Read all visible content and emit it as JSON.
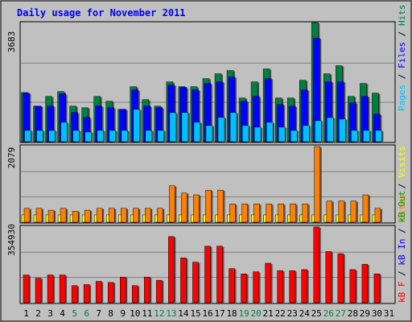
{
  "chart_data": [
    {
      "type": "bar",
      "title": "Daily usage for November 2011",
      "panel": "hits-files-pages",
      "ymax_label": "3683",
      "ylim": [
        0,
        3683
      ],
      "legend": [
        "Pages",
        "Files",
        "Hits"
      ],
      "colors": {
        "hits": "#008040",
        "files": "#0000ff",
        "pages": "#00c0ff"
      },
      "categories": [
        "1",
        "2",
        "3",
        "4",
        "5",
        "6",
        "7",
        "8",
        "9",
        "10",
        "11",
        "12",
        "13",
        "14",
        "15",
        "16",
        "17",
        "18",
        "19",
        "20",
        "21",
        "22",
        "23",
        "24",
        "25",
        "26",
        "27",
        "28",
        "29",
        "30",
        "31"
      ],
      "series": [
        {
          "name": "Hits",
          "values": [
            1520,
            1100,
            1400,
            1550,
            1100,
            1050,
            1400,
            1250,
            1000,
            1700,
            1300,
            1100,
            1850,
            1700,
            1700,
            1950,
            2100,
            2200,
            1350,
            1850,
            2250,
            1350,
            1350,
            1900,
            3683,
            2100,
            2350,
            1400,
            1800,
            1500,
            0
          ]
        },
        {
          "name": "Files",
          "values": [
            1500,
            1100,
            1100,
            1480,
            900,
            750,
            1100,
            1050,
            1000,
            1600,
            1100,
            1050,
            1750,
            1680,
            1600,
            1800,
            1850,
            2000,
            1250,
            1400,
            1950,
            1150,
            1100,
            1600,
            3200,
            1850,
            1850,
            1200,
            1400,
            850,
            0
          ]
        },
        {
          "name": "Pages",
          "values": [
            350,
            350,
            350,
            600,
            350,
            300,
            350,
            350,
            350,
            1000,
            350,
            350,
            900,
            900,
            600,
            500,
            750,
            900,
            500,
            450,
            600,
            450,
            350,
            500,
            650,
            750,
            700,
            350,
            350,
            350,
            0
          ]
        }
      ]
    },
    {
      "type": "bar",
      "panel": "sites-visits",
      "ymax_label": "2079",
      "ylim": [
        0,
        2079
      ],
      "legend": [
        "Visits",
        "Sites"
      ],
      "colors": {
        "visits": "#ffff00",
        "sites": "#ff8000"
      },
      "categories": [
        "1",
        "2",
        "3",
        "4",
        "5",
        "6",
        "7",
        "8",
        "9",
        "10",
        "11",
        "12",
        "13",
        "14",
        "15",
        "16",
        "17",
        "18",
        "19",
        "20",
        "21",
        "22",
        "23",
        "24",
        "25",
        "26",
        "27",
        "28",
        "29",
        "30",
        "31"
      ],
      "series": [
        {
          "name": "Visits",
          "values": [
            200,
            200,
            200,
            200,
            200,
            200,
            200,
            200,
            200,
            200,
            200,
            200,
            200,
            200,
            200,
            200,
            200,
            200,
            200,
            200,
            200,
            200,
            200,
            200,
            200,
            200,
            200,
            200,
            200,
            200,
            0
          ]
        },
        {
          "name": "Sites",
          "values": [
            380,
            380,
            330,
            380,
            300,
            330,
            380,
            380,
            380,
            380,
            380,
            380,
            1000,
            800,
            750,
            880,
            880,
            500,
            500,
            500,
            500,
            500,
            500,
            500,
            2079,
            580,
            580,
            580,
            750,
            380,
            0
          ]
        }
      ]
    },
    {
      "type": "bar",
      "panel": "kbf-kbin-kbout",
      "ymax_label": "354930",
      "ylim": [
        0,
        354930
      ],
      "legend": [
        "kB F",
        "kB In",
        "kB Out"
      ],
      "colors": {
        "kbf": "#ff0000",
        "kbin": "#0000ff",
        "kbout": "#00a000"
      },
      "categories": [
        "1",
        "2",
        "3",
        "4",
        "5",
        "6",
        "7",
        "8",
        "9",
        "10",
        "11",
        "12",
        "13",
        "14",
        "15",
        "16",
        "17",
        "18",
        "19",
        "20",
        "21",
        "22",
        "23",
        "24",
        "25",
        "26",
        "27",
        "28",
        "29",
        "30",
        "31"
      ],
      "series": [
        {
          "name": "kB F",
          "values": [
            130000,
            115000,
            130000,
            130000,
            80000,
            85000,
            100000,
            95000,
            120000,
            80000,
            120000,
            105000,
            310000,
            210000,
            190000,
            265000,
            265000,
            160000,
            135000,
            145000,
            185000,
            150000,
            150000,
            155000,
            354930,
            240000,
            230000,
            155000,
            180000,
            135000,
            0
          ]
        }
      ]
    }
  ],
  "colors": {
    "background": "#c0c0c0",
    "title": "#0000ff",
    "grid": "#808080"
  }
}
